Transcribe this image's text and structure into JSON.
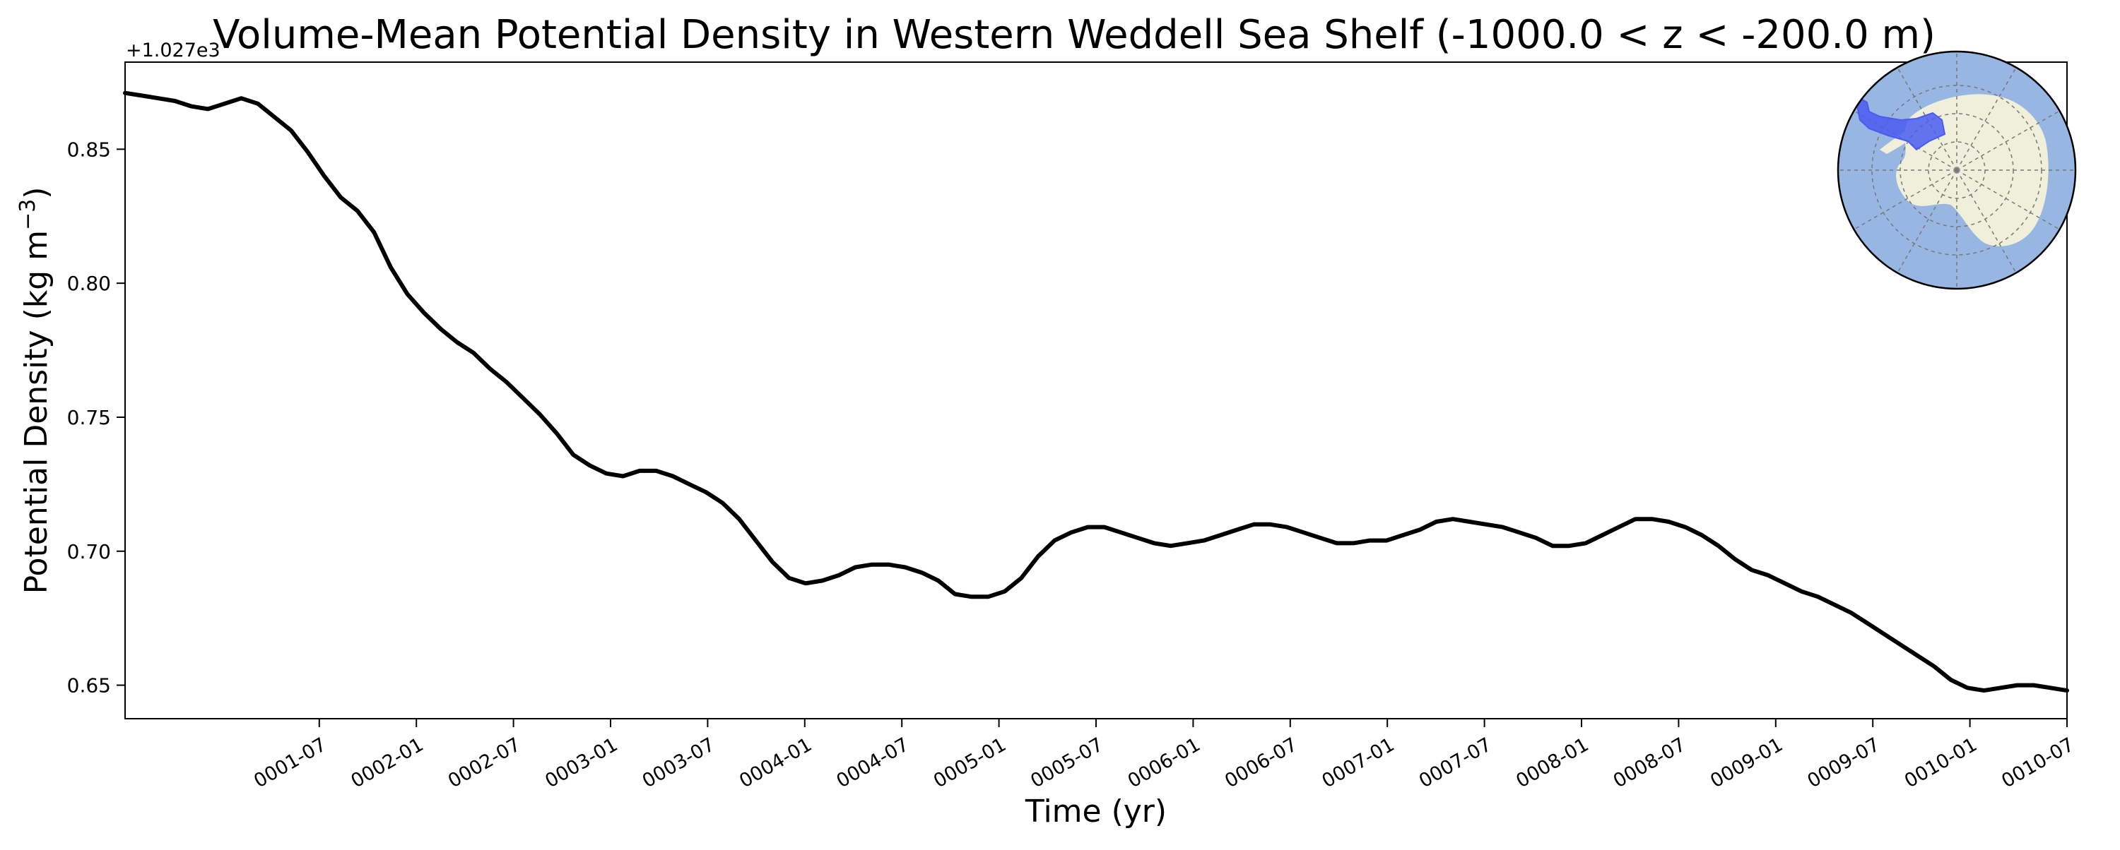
{
  "chart_data": {
    "type": "line",
    "title": "Volume-Mean Potential Density in Western Weddell Sea Shelf (-1000.0 < z < -200.0 m)",
    "xlabel": "Time (yr)",
    "ylabel_main": "Potential Density (kg m",
    "ylabel_sup": "−3",
    "ylabel_close": ")",
    "offset_label": "+1.027e3",
    "x_ticks": [
      "0001-07",
      "0002-01",
      "0002-07",
      "0003-01",
      "0003-07",
      "0004-01",
      "0004-07",
      "0005-01",
      "0005-07",
      "0006-01",
      "0006-07",
      "0007-01",
      "0007-07",
      "0008-01",
      "0008-07",
      "0009-01",
      "0009-07",
      "0010-01",
      "0010-07"
    ],
    "y_ticks": [
      "0.65",
      "0.70",
      "0.75",
      "0.80",
      "0.85"
    ],
    "y_tick_values": [
      0.65,
      0.7,
      0.75,
      0.8,
      0.85
    ],
    "xlim_months": [
      0,
      120
    ],
    "ylim": [
      0.6375,
      0.8825
    ],
    "grid": false,
    "line_color": "#000000",
    "series": [
      {
        "values": [
          0.871,
          0.87,
          0.869,
          0.868,
          0.866,
          0.865,
          0.867,
          0.869,
          0.867,
          0.862,
          0.857,
          0.849,
          0.84,
          0.832,
          0.827,
          0.819,
          0.806,
          0.796,
          0.789,
          0.783,
          0.778,
          0.774,
          0.768,
          0.763,
          0.757,
          0.751,
          0.744,
          0.736,
          0.732,
          0.729,
          0.728,
          0.73,
          0.73,
          0.728,
          0.725,
          0.722,
          0.718,
          0.712,
          0.704,
          0.696,
          0.69,
          0.688,
          0.689,
          0.691,
          0.694,
          0.695,
          0.695,
          0.694,
          0.692,
          0.689,
          0.684,
          0.683,
          0.683,
          0.685,
          0.69,
          0.698,
          0.704,
          0.707,
          0.709,
          0.709,
          0.707,
          0.705,
          0.703,
          0.702,
          0.703,
          0.704,
          0.706,
          0.708,
          0.71,
          0.71,
          0.709,
          0.707,
          0.705,
          0.703,
          0.703,
          0.704,
          0.704,
          0.706,
          0.708,
          0.711,
          0.712,
          0.711,
          0.71,
          0.709,
          0.707,
          0.705,
          0.702,
          0.702,
          0.703,
          0.706,
          0.709,
          0.712,
          0.712,
          0.711,
          0.709,
          0.706,
          0.702,
          0.697,
          0.693,
          0.691,
          0.688,
          0.685,
          0.683,
          0.68,
          0.677,
          0.673,
          0.669,
          0.665,
          0.661,
          0.657,
          0.652,
          0.649,
          0.648,
          0.649,
          0.65,
          0.65,
          0.649,
          0.648
        ]
      }
    ]
  },
  "inset_map": {
    "ocean_color": "#97b6e1",
    "land_color": "#efefdb",
    "region_color": "#4a5cf0",
    "region": "Western Weddell Sea Shelf"
  }
}
